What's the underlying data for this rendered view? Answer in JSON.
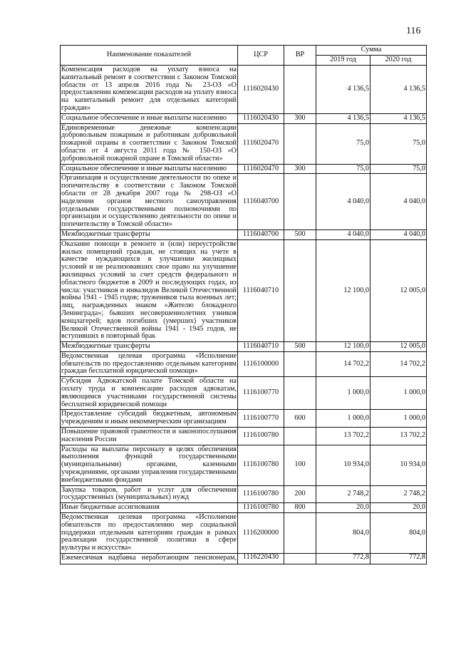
{
  "page_number": "116",
  "header": {
    "name": "Наименование показателей",
    "csr": "ЦСР",
    "vr": "ВР",
    "sum": "Сумма",
    "y2019": "2019 год",
    "y2020": "2020 год"
  },
  "rows": [
    {
      "name": "Компенсация расходов на уплату взноса на капитальный ремонт в соответствии с Законом Томской области от 13 апреля 2016 года № 23-ОЗ «О предоставлении компенсации расходов на уплату взноса на капитальный ремонт для отдельных категорий граждан»",
      "csr": "1116020430",
      "vr": "",
      "y2019": "4 136,5",
      "y2020": "4 136,5"
    },
    {
      "name": "Социальное обеспечение и иные выплаты населению",
      "csr": "1116020430",
      "vr": "300",
      "y2019": "4 136,5",
      "y2020": "4 136,5"
    },
    {
      "name": "Единовременные денежные компенсации добровольным пожарным и работникам добровольной пожарной охраны в соответствии с Законом Томской области от 4 августа 2011 года № 150-ОЗ «О добровольной пожарной охране в Томской области»",
      "csr": "1116020470",
      "vr": "",
      "y2019": "75,0",
      "y2020": "75,0"
    },
    {
      "name": "Социальное обеспечение и иные выплаты населению",
      "csr": "1116020470",
      "vr": "300",
      "y2019": "75,0",
      "y2020": "75,0"
    },
    {
      "name": "Организация и осуществление деятельности по опеке и попечительству в соответствии с Законом Томской области от 28 декабря 2007 года № 298-ОЗ «О наделении органов местного самоуправления отдельными государственными полномочиями по организации и осуществлению деятельности по опеке и попечительству в Томской области»",
      "csr": "1116040700",
      "vr": "",
      "y2019": "4 040,0",
      "y2020": "4 040,0"
    },
    {
      "name": "Межбюджетные трансферты",
      "csr": "1116040700",
      "vr": "500",
      "y2019": "4 040,0",
      "y2020": "4 040,0"
    },
    {
      "name": "Оказание помощи в ремонте и (или) переустройстве жилых помещений граждан, не стоящих на учете в качестве нуждающихся в улучшении жилищных условий и не реализовавших свое право на улучшение жилищных условий за счет средств федерального и областного бюджетов в 2009 и последующих годах, из числа: участников и инвалидов Великой Отечественной войны 1941 - 1945 годов; тружеников тыла военных лет; лиц, награжденных знаком «Жителю блокадного Ленинграда»; бывших несовершеннолетних узников концлагерей; вдов погибших (умерших) участников Великой Отечественной войны 1941 - 1945 годов, не вступивших в повторный брак",
      "csr": "1116040710",
      "vr": "",
      "y2019": "12 100,0",
      "y2020": "12 005,0"
    },
    {
      "name": "Межбюджетные трансферты",
      "csr": "1116040710",
      "vr": "500",
      "y2019": "12 100,0",
      "y2020": "12 005,0"
    },
    {
      "name": "Ведомственная целевая программа «Исполнение обязательств по предоставлению отдельным категориям граждан бесплатной юридической помощи»",
      "csr": "1116100000",
      "vr": "",
      "y2019": "14 702,2",
      "y2020": "14 702,2"
    },
    {
      "name": "Субсидия Адвокатской палате Томской области на оплату труда и компенсацию расходов адвокатам, являющимся участниками государственной системы бесплатной юридической помощи",
      "csr": "1116100770",
      "vr": "",
      "y2019": "1 000,0",
      "y2020": "1 000,0"
    },
    {
      "name": "Предоставление субсидий бюджетным, автономным учреждениям и иным некоммерческим организациям",
      "csr": "1116100770",
      "vr": "600",
      "y2019": "1 000,0",
      "y2020": "1 000,0"
    },
    {
      "name": "Повышение правовой грамотности и законопослушания населения России",
      "csr": "1116100780",
      "vr": "",
      "y2019": "13 702,2",
      "y2020": "13 702,2"
    },
    {
      "name": "Расходы на выплаты персоналу в целях обеспечения выполнения функций государственными (муниципальными) органами, казенными учреждениями, органами управления государственными внебюджетными фондами",
      "csr": "1116100780",
      "vr": "100",
      "y2019": "10 934,0",
      "y2020": "10 934,0"
    },
    {
      "name": "Закупка товаров, работ и услуг для обеспечения государственных (муниципальных) нужд",
      "csr": "1116100780",
      "vr": "200",
      "y2019": "2 748,2",
      "y2020": "2 748,2"
    },
    {
      "name": "Иные бюджетные ассигнования",
      "csr": "1116100780",
      "vr": "800",
      "y2019": "20,0",
      "y2020": "20,0"
    },
    {
      "name": "Ведомственная целевая программа «Исполнение обязательств по предоставлению мер социальной поддержки отдельным категориям граждан в рамках реализации государственной политики в сфере культуры и искусства»",
      "csr": "1116200000",
      "vr": "",
      "y2019": "804,0",
      "y2020": "804,0"
    },
    {
      "name": "Ежемесячная надбавка неработающим пенсионерам,",
      "csr": "1116220430",
      "vr": "",
      "y2019": "772,8",
      "y2020": "772,8"
    }
  ]
}
